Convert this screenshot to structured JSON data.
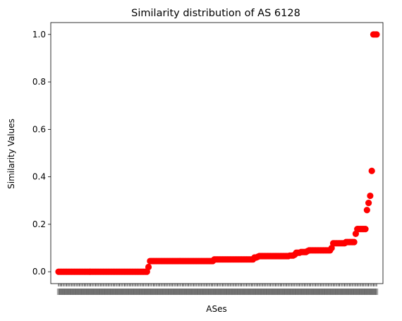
{
  "chart_data": {
    "type": "scatter",
    "title": "Similarity distribution of AS 6128",
    "xlabel": "ASes",
    "ylabel": "Similarity Values",
    "ylim": [
      -0.05,
      1.05
    ],
    "yticks": [
      0.0,
      0.2,
      0.4,
      0.6,
      0.8,
      1.0
    ],
    "ytick_labels": [
      "0.0",
      "0.2",
      "0.4",
      "0.6",
      "0.8",
      "1.0"
    ],
    "marker_color": "#ff0000",
    "xtick_labels_note": "crowded, illegible AS-number tick labels (one per point)",
    "series": [
      {
        "values": [
          0.0,
          0.0,
          0.0,
          0.0,
          0.0,
          0.0,
          0.0,
          0.0,
          0.0,
          0.0,
          0.0,
          0.0,
          0.0,
          0.0,
          0.0,
          0.0,
          0.0,
          0.0,
          0.0,
          0.0,
          0.0,
          0.0,
          0.0,
          0.0,
          0.0,
          0.0,
          0.0,
          0.0,
          0.0,
          0.0,
          0.0,
          0.0,
          0.0,
          0.0,
          0.0,
          0.0,
          0.0,
          0.0,
          0.0,
          0.0,
          0.0,
          0.0,
          0.0,
          0.0,
          0.0,
          0.0,
          0.0,
          0.0,
          0.0,
          0.0,
          0.0,
          0.0,
          0.0,
          0.0,
          0.0,
          0.0,
          0.02,
          0.045,
          0.045,
          0.045,
          0.045,
          0.045,
          0.045,
          0.045,
          0.045,
          0.045,
          0.045,
          0.045,
          0.045,
          0.045,
          0.045,
          0.045,
          0.045,
          0.045,
          0.045,
          0.045,
          0.045,
          0.045,
          0.045,
          0.045,
          0.045,
          0.045,
          0.045,
          0.045,
          0.045,
          0.045,
          0.045,
          0.045,
          0.045,
          0.045,
          0.045,
          0.045,
          0.045,
          0.045,
          0.045,
          0.045,
          0.045,
          0.052,
          0.052,
          0.052,
          0.052,
          0.052,
          0.052,
          0.052,
          0.052,
          0.052,
          0.052,
          0.052,
          0.052,
          0.052,
          0.052,
          0.052,
          0.052,
          0.052,
          0.052,
          0.052,
          0.052,
          0.052,
          0.052,
          0.052,
          0.052,
          0.052,
          0.06,
          0.06,
          0.063,
          0.066,
          0.066,
          0.066,
          0.066,
          0.066,
          0.066,
          0.066,
          0.066,
          0.066,
          0.066,
          0.066,
          0.066,
          0.066,
          0.066,
          0.066,
          0.066,
          0.066,
          0.066,
          0.066,
          0.068,
          0.068,
          0.068,
          0.072,
          0.08,
          0.08,
          0.08,
          0.083,
          0.083,
          0.083,
          0.083,
          0.087,
          0.09,
          0.09,
          0.09,
          0.09,
          0.09,
          0.09,
          0.09,
          0.09,
          0.09,
          0.09,
          0.09,
          0.09,
          0.09,
          0.09,
          0.1,
          0.12,
          0.12,
          0.12,
          0.12,
          0.12,
          0.12,
          0.12,
          0.12,
          0.125,
          0.125,
          0.125,
          0.125,
          0.125,
          0.125,
          0.16,
          0.18,
          0.18,
          0.18,
          0.18,
          0.18,
          0.18,
          0.26,
          0.29,
          0.32,
          0.425,
          1.0,
          1.0,
          1.0
        ]
      }
    ]
  }
}
